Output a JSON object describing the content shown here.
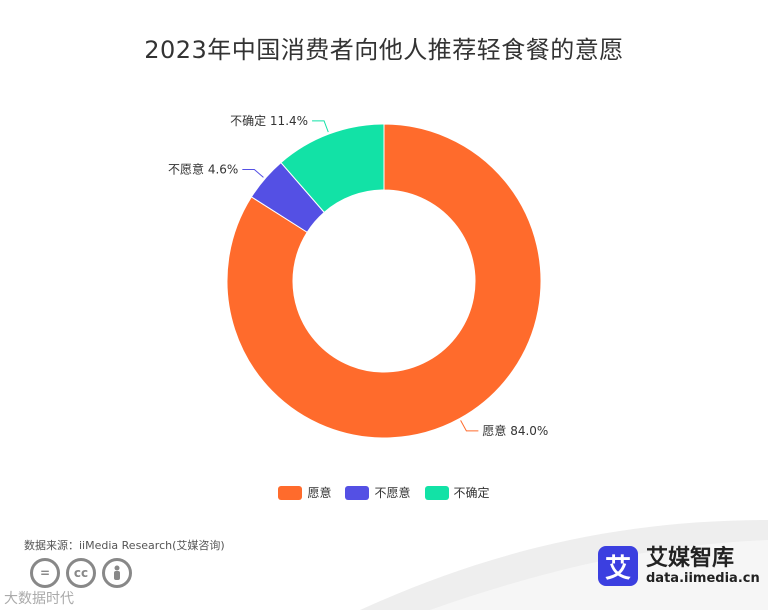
{
  "chart_data": {
    "type": "pie",
    "title": "2023年中国消费者向他人推荐轻食餐的意愿",
    "donut": true,
    "slices": [
      {
        "name": "愿意",
        "value": 84.0,
        "label": "愿意 84.0%",
        "color": "#ff6b2c"
      },
      {
        "name": "不愿意",
        "value": 4.6,
        "label": "不愿意 4.6%",
        "color": "#5450e4"
      },
      {
        "name": "不确定",
        "value": 11.4,
        "label": "不确定 11.4%",
        "color": "#12e2a6"
      }
    ],
    "legend_position": "bottom"
  },
  "footer": {
    "source": "数据来源：iiMedia Research(艾媒咨询)",
    "watermark": "大数据时代",
    "cc_icons": [
      "equals-icon",
      "cc-icon",
      "person-icon"
    ],
    "brand_logo_char": "艾",
    "brand_name": "艾媒智库",
    "brand_url": "data.iimedia.cn"
  }
}
